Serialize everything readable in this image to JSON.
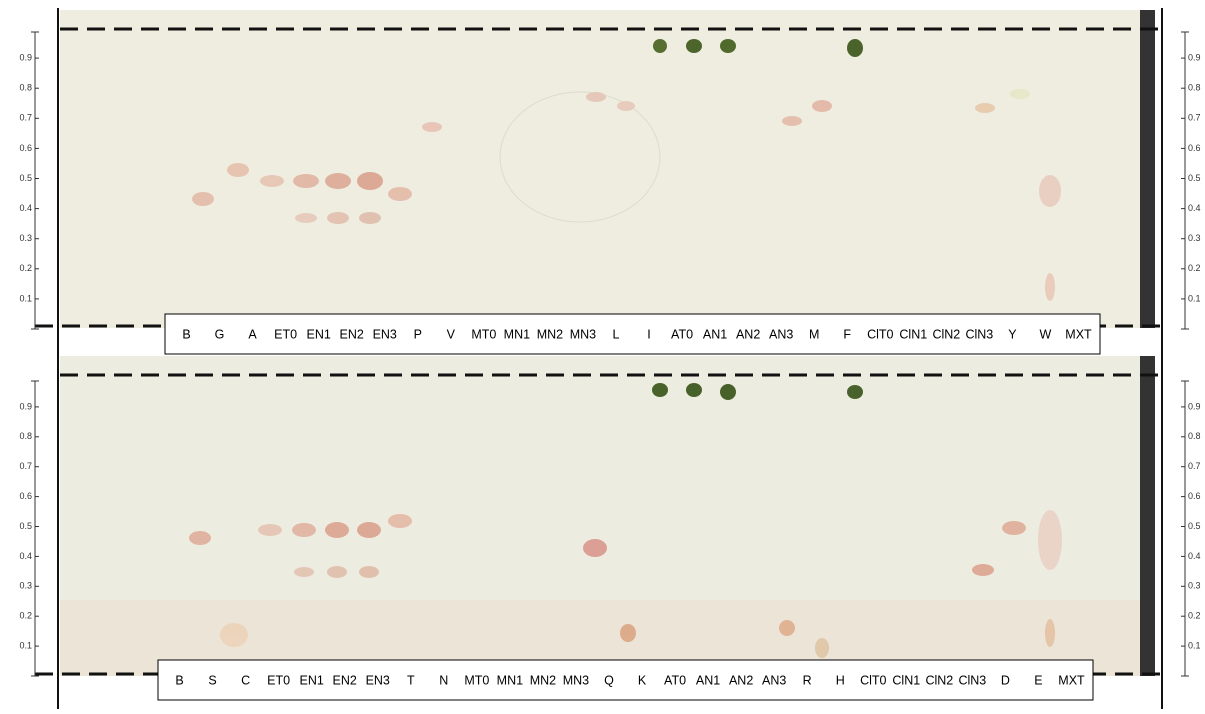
{
  "scale_ticks": [
    0.1,
    0.2,
    0.3,
    0.4,
    0.5,
    0.6,
    0.7,
    0.8,
    0.9
  ],
  "plates": [
    {
      "lanes": [
        "B",
        "G",
        "A",
        "ET0",
        "EN1",
        "EN2",
        "EN3",
        "P",
        "V",
        "MT0",
        "MN1",
        "MN2",
        "MN3",
        "L",
        "I",
        "AT0",
        "AN1",
        "AN2",
        "AN3",
        "M",
        "F",
        "ClT0",
        "ClN1",
        "ClN2",
        "ClN3",
        "Y",
        "W",
        "MXT"
      ]
    },
    {
      "lanes": [
        "B",
        "S",
        "C",
        "ET0",
        "EN1",
        "EN2",
        "EN3",
        "T",
        "N",
        "MT0",
        "MN1",
        "MN2",
        "MN3",
        "Q",
        "K",
        "AT0",
        "AN1",
        "AN2",
        "AN3",
        "R",
        "H",
        "ClT0",
        "ClN1",
        "ClN2",
        "ClN3",
        "D",
        "E",
        "MXT"
      ]
    }
  ]
}
